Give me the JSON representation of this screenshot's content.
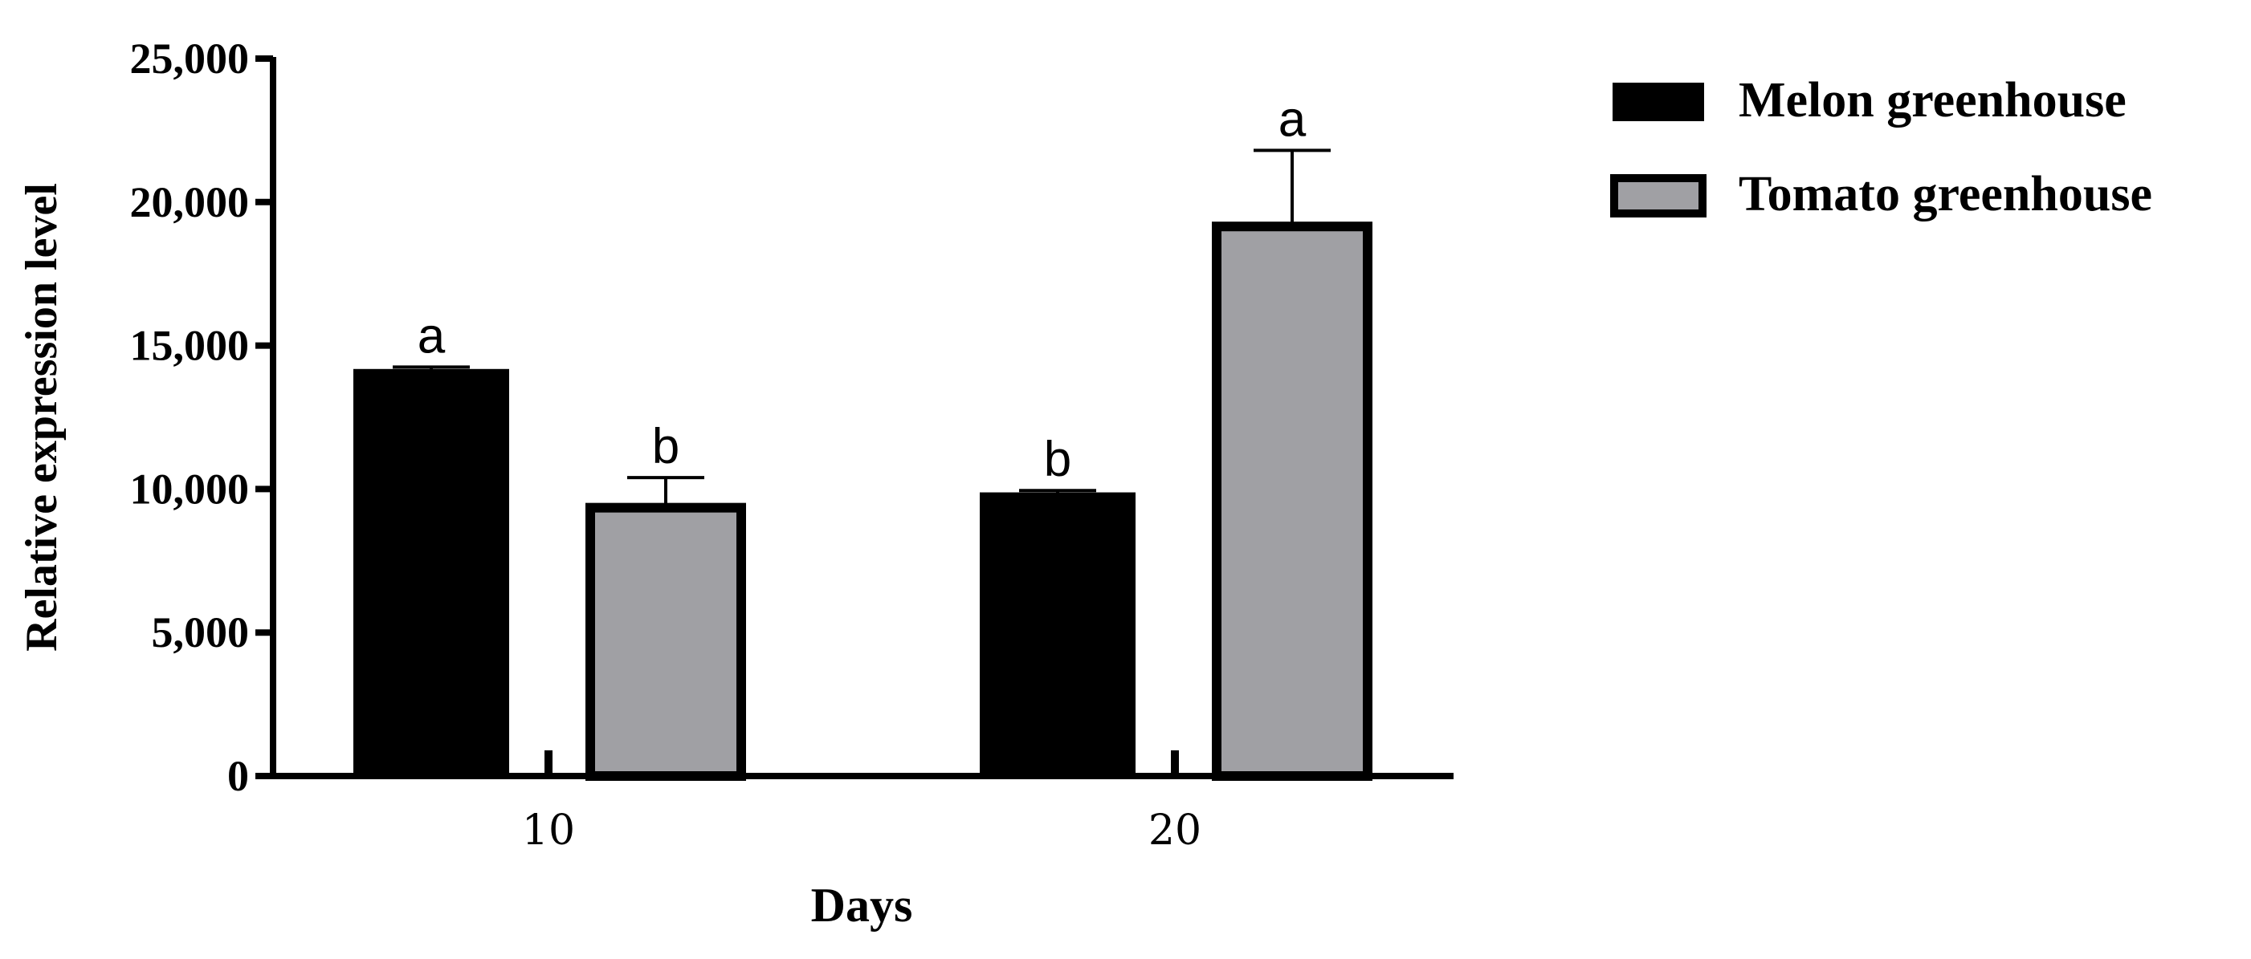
{
  "chart_data": {
    "type": "bar",
    "title": "",
    "xlabel": "Days",
    "ylabel": "Relative expression level",
    "categories": [
      "10",
      "20"
    ],
    "ylim": [
      0,
      25000
    ],
    "yticks": [
      0,
      5000,
      10000,
      15000,
      20000,
      25000
    ],
    "ytick_labels": [
      "0",
      "5,000",
      "10,000",
      "15,000",
      "20,000",
      "25,000"
    ],
    "series": [
      {
        "name": "Melon greenhouse",
        "color": "#000000",
        "values": [
          14100,
          9800
        ],
        "errors": [
          150,
          150
        ],
        "significance": [
          "a",
          "b"
        ]
      },
      {
        "name": "Tomato greenhouse",
        "color": "#a0a0a4",
        "values": [
          9350,
          19150
        ],
        "errors": [
          1050,
          2650
        ],
        "significance": [
          "b",
          "a"
        ]
      }
    ],
    "grid": false,
    "legend_position": "right"
  }
}
